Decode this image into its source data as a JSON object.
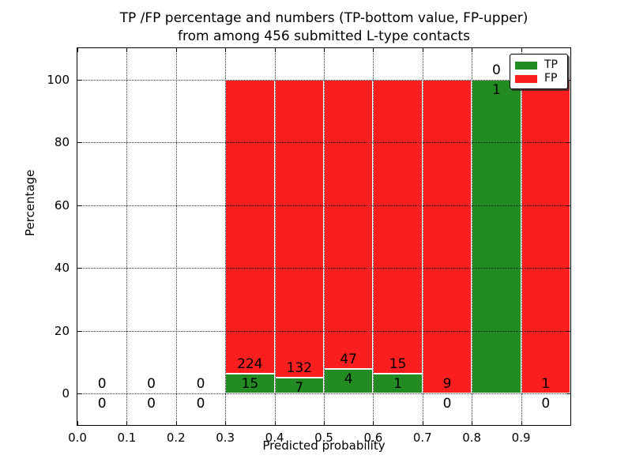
{
  "title": {
    "line1": "TP /FP percentage and numbers (TP-bottom value, FP-upper)",
    "line2": "from among 456 submitted L-type contacts"
  },
  "axes": {
    "xlabel": "Predicted probability",
    "ylabel": "Percentage"
  },
  "legend": {
    "position": "upper right",
    "items": [
      {
        "label": "TP",
        "color": "#228B22"
      },
      {
        "label": "FP",
        "color": "#FA1E1E"
      }
    ]
  },
  "chart_data": {
    "type": "bar",
    "stacked": true,
    "title": "TP /FP percentage and numbers (TP-bottom value, FP-upper) from among 456 submitted L-type contacts",
    "xlabel": "Predicted probability",
    "ylabel": "Percentage",
    "xlim": [
      0.0,
      1.0
    ],
    "ylim": [
      -10,
      110
    ],
    "xticks": [
      "0.0",
      "0.1",
      "0.2",
      "0.3",
      "0.4",
      "0.5",
      "0.6",
      "0.7",
      "0.8",
      "0.9"
    ],
    "yticks": [
      0,
      20,
      40,
      60,
      80,
      100
    ],
    "grid": true,
    "grid_style": "dotted",
    "bar_edge_color": "#ffffff",
    "total_contacts": 456,
    "series": [
      {
        "name": "TP",
        "color": "#228B22"
      },
      {
        "name": "FP",
        "color": "#FA1E1E"
      }
    ],
    "bins": [
      {
        "x0": 0.0,
        "x1": 0.1,
        "tp": 0,
        "fp": 0,
        "tp_pct": 0,
        "fp_pct": 0
      },
      {
        "x0": 0.1,
        "x1": 0.2,
        "tp": 0,
        "fp": 0,
        "tp_pct": 0,
        "fp_pct": 0
      },
      {
        "x0": 0.2,
        "x1": 0.3,
        "tp": 0,
        "fp": 0,
        "tp_pct": 0,
        "fp_pct": 0
      },
      {
        "x0": 0.3,
        "x1": 0.4,
        "tp": 15,
        "fp": 224,
        "tp_pct": 6.28,
        "fp_pct": 93.72
      },
      {
        "x0": 0.4,
        "x1": 0.5,
        "tp": 7,
        "fp": 132,
        "tp_pct": 5.04,
        "fp_pct": 94.96
      },
      {
        "x0": 0.5,
        "x1": 0.6,
        "tp": 4,
        "fp": 47,
        "tp_pct": 7.84,
        "fp_pct": 92.16
      },
      {
        "x0": 0.6,
        "x1": 0.7,
        "tp": 1,
        "fp": 15,
        "tp_pct": 6.25,
        "fp_pct": 93.75
      },
      {
        "x0": 0.7,
        "x1": 0.8,
        "tp": 0,
        "fp": 9,
        "tp_pct": 0,
        "fp_pct": 100
      },
      {
        "x0": 0.8,
        "x1": 0.9,
        "tp": 1,
        "fp": 0,
        "tp_pct": 100,
        "fp_pct": 0
      },
      {
        "x0": 0.9,
        "x1": 1.0,
        "tp": 0,
        "fp": 1,
        "tp_pct": 0,
        "fp_pct": 100
      }
    ]
  }
}
